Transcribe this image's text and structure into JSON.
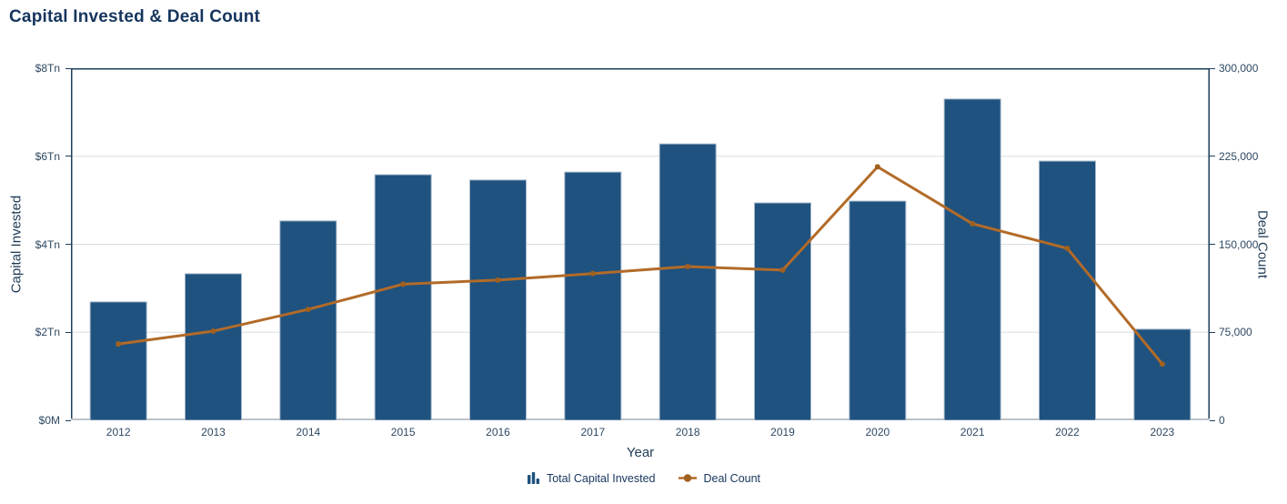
{
  "page": {
    "title": "Capital Invested & Deal Count"
  },
  "chart_data": {
    "type": "bar",
    "subtype": "combo-bar-line-dual-axis",
    "title": "Capital Invested & Deal Count",
    "xlabel": "Year",
    "ylabel_left": "Capital Invested",
    "ylabel_right": "Deal Count",
    "categories": [
      "2012",
      "2013",
      "2014",
      "2015",
      "2016",
      "2017",
      "2018",
      "2019",
      "2020",
      "2021",
      "2022",
      "2023"
    ],
    "series": [
      {
        "name": "Total Capital Invested",
        "chart_type": "bar",
        "axis": "left",
        "unit": "$Tn",
        "values": [
          2.69,
          3.33,
          4.53,
          5.58,
          5.46,
          5.64,
          6.28,
          4.94,
          4.98,
          7.3,
          5.89,
          2.07
        ]
      },
      {
        "name": "Deal Count",
        "chart_type": "line",
        "axis": "right",
        "unit": "deals",
        "values": [
          65000,
          76000,
          94500,
          116000,
          119500,
          125000,
          131000,
          128000,
          216000,
          167500,
          146500,
          48000
        ]
      }
    ],
    "ylim_left": [
      0,
      8
    ],
    "ylim_right": [
      0,
      300000
    ],
    "y_left_tick_labels_top_to_bottom": [
      "$8Tn",
      "$6Tn",
      "$4Tn",
      "$2Tn",
      "$0M"
    ],
    "y_right_tick_labels_top_to_bottom": [
      "300,000",
      "225,000",
      "150,000",
      "75,000",
      "0"
    ],
    "grid": "horizontal-light-gray",
    "legend_position": "bottom-center"
  },
  "legend": {
    "capital_label": "Total Capital Invested",
    "deal_count_label": "Deal Count"
  },
  "colors": {
    "title_text": "#16355D",
    "axis_text": "#1F3B57",
    "tick_text": "#2D4862",
    "bar_fill": "#1F527F",
    "bar_border": "#A3B6C9",
    "line": "#B26B28",
    "marker": "#A0601F",
    "axis_frame": "#1C3E5A",
    "axis_bottom": "#BCC3C9",
    "gridline": "#D9DDE0"
  }
}
